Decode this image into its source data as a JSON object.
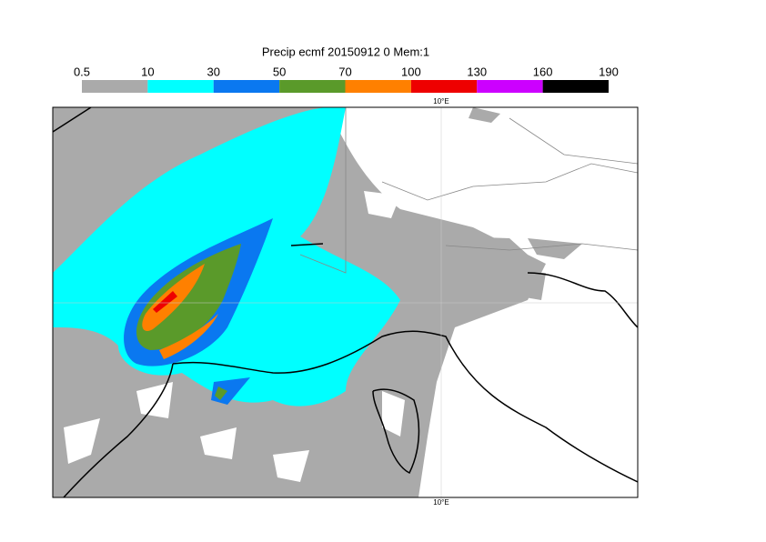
{
  "title": "Precip ecmf 20150912 0 Mem:1",
  "colorbar": {
    "levels": [
      "0.5",
      "10",
      "30",
      "50",
      "70",
      "100",
      "130",
      "160",
      "190"
    ],
    "colors": [
      "#aaaaaa",
      "#00ffff",
      "#0a78f0",
      "#5a9a2a",
      "#ff8000",
      "#ee0000",
      "#cc00ff",
      "#000000"
    ]
  },
  "map": {
    "top_label": "10°E",
    "bottom_label": "10°E"
  }
}
